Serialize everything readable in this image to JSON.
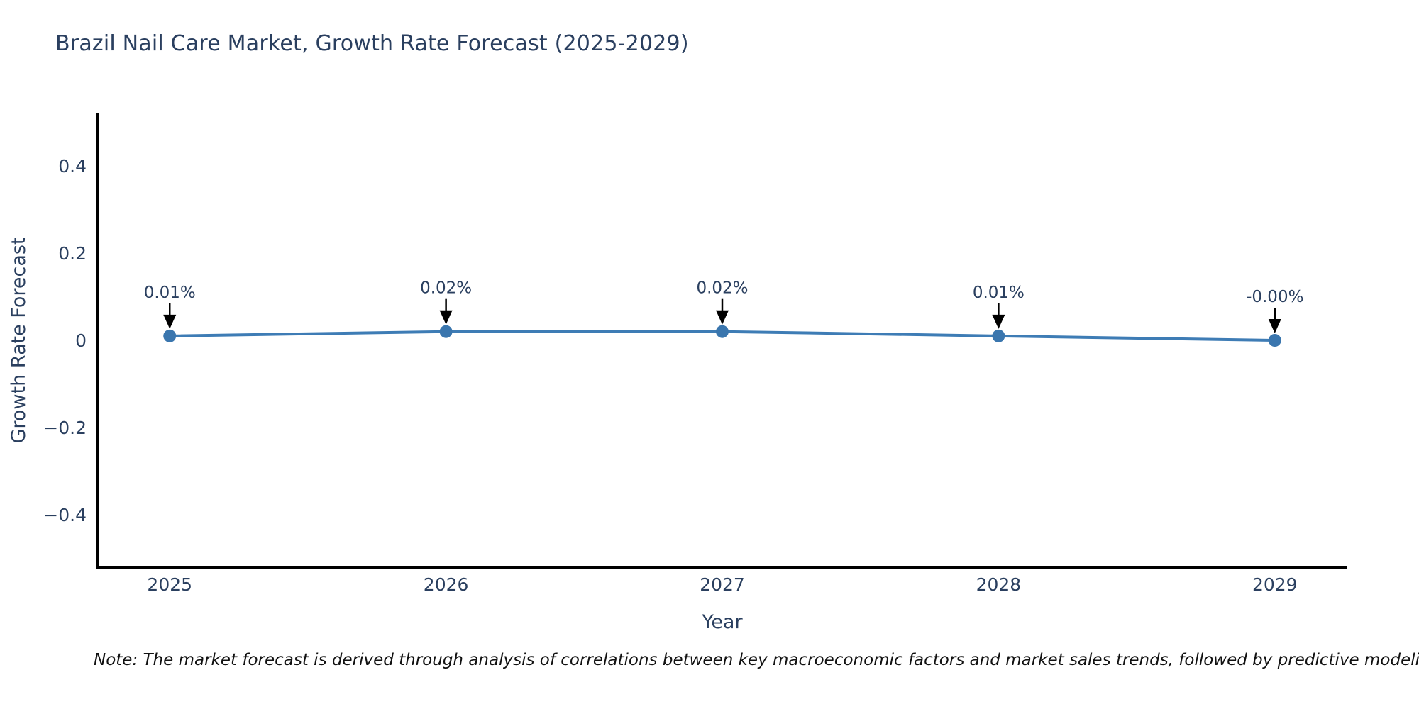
{
  "title": "Brazil Nail Care Market, Growth Rate Forecast (2025-2029)",
  "note": "Note: The market forecast is derived through analysis of correlations between key macroeconomic factors and market sales trends, followed by predictive modeling to project future sales",
  "chart_data": {
    "type": "line",
    "title": "Brazil Nail Care Market, Growth Rate Forecast (2025-2029)",
    "xlabel": "Year",
    "ylabel": "Growth Rate Forecast",
    "x": [
      2025,
      2026,
      2027,
      2028,
      2029
    ],
    "series": [
      {
        "name": "Growth Rate Forecast",
        "values": [
          0.01,
          0.02,
          0.02,
          0.01,
          -0.0
        ]
      }
    ],
    "point_labels": [
      "0.01%",
      "0.02%",
      "0.02%",
      "0.01%",
      "-0.00%"
    ],
    "xtick_labels": [
      "2025",
      "2026",
      "2027",
      "2028",
      "2029"
    ],
    "yticks": [
      -0.4,
      -0.2,
      0,
      0.2,
      0.4
    ],
    "ytick_labels": [
      "−0.4",
      "−0.2",
      "0",
      "0.2",
      "0.4"
    ],
    "xlim": [
      2024.74,
      2029.26
    ],
    "ylim": [
      -0.52,
      0.52
    ],
    "grid": false,
    "legend": "none",
    "colors": {
      "line": "#3e7cb5",
      "marker": "#3a76ae",
      "axis_line": "#000000",
      "tick_text": "#2a3f5f",
      "axis_title_text": "#2a3f5f",
      "annotation_text": "#2a3f5f",
      "annotation_arrow": "#000000",
      "background": "#ffffff"
    }
  }
}
